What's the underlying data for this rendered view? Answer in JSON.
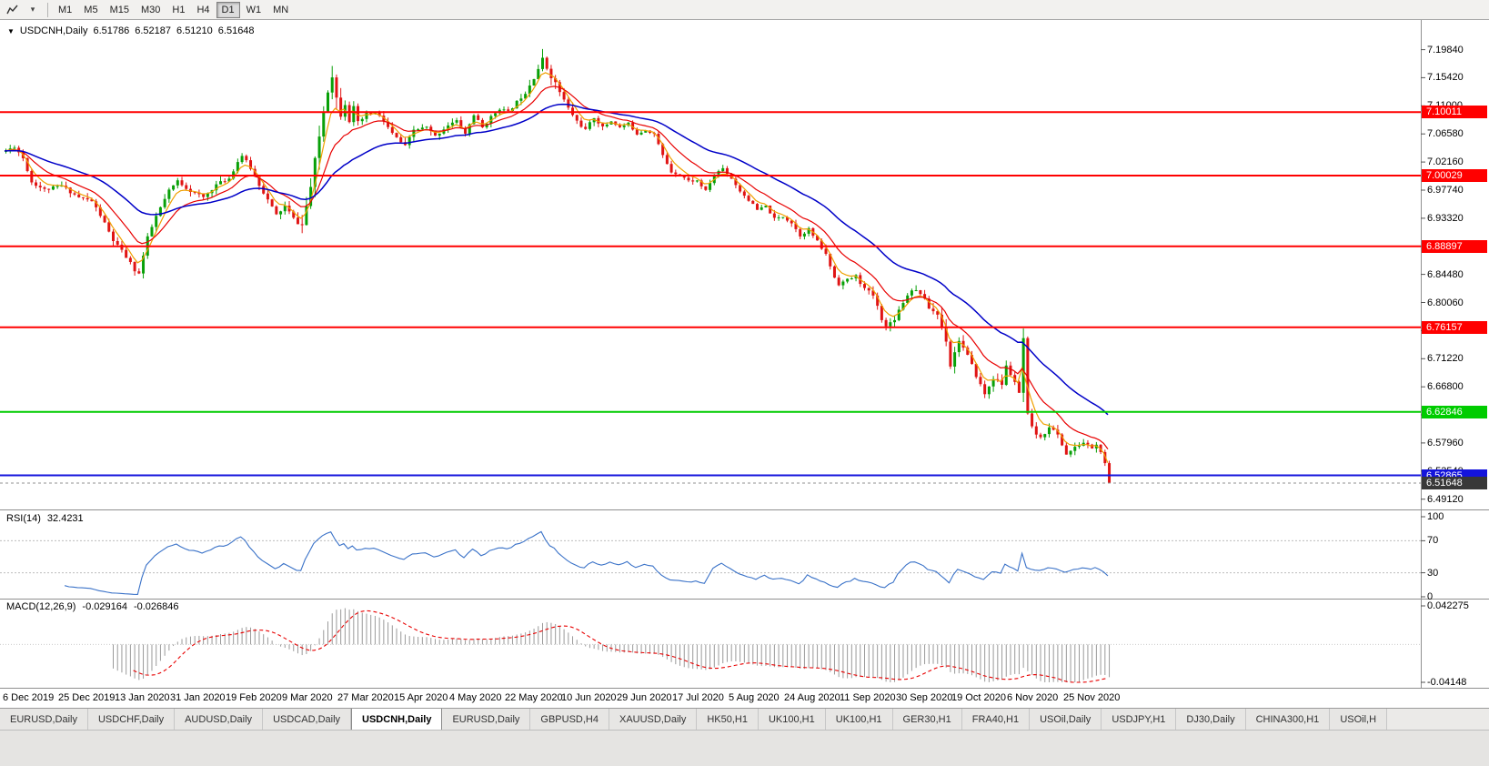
{
  "toolbar": {
    "chart_icon": "zigzag-chart-icon",
    "dropdown_icon": "chevron-down-icon",
    "timeframes": [
      "M1",
      "M5",
      "M15",
      "M30",
      "H1",
      "H4",
      "D1",
      "W1",
      "MN"
    ],
    "active_timeframe": "D1"
  },
  "chart": {
    "title": {
      "collapse_icon": "triangle-down-icon",
      "symbol": "USDCNH,Daily",
      "open": "6.51786",
      "high": "6.52187",
      "low": "6.51210",
      "close": "6.51648"
    }
  },
  "rsi": {
    "label": "RSI(14)",
    "value": "32.4231",
    "levels": [
      {
        "label": "100",
        "value": 100
      },
      {
        "label": "70",
        "value": 70
      },
      {
        "label": "30",
        "value": 30
      },
      {
        "label": "0",
        "value": 0
      }
    ]
  },
  "macd": {
    "label": "MACD(12,26,9)",
    "value1": "-0.029164",
    "value2": "-0.026846",
    "axis_top": "0.042275",
    "axis_bottom": "-0.04148"
  },
  "tabs": {
    "active_index": 4,
    "items": [
      "EURUSD,Daily",
      "USDCHF,Daily",
      "AUDUSD,Daily",
      "USDCAD,Daily",
      "USDCNH,Daily",
      "EURUSD,Daily",
      "GBPUSD,H4",
      "XAUUSD,Daily",
      "HK50,H1",
      "UK100,H1",
      "UK100,H1",
      "GER30,H1",
      "FRA40,H1",
      "USOil,Daily",
      "USDJPY,H1",
      "DJ30,Daily",
      "CHINA300,H1",
      "USOil,H"
    ],
    "overflow_truncated_last": true
  },
  "chart_data": {
    "type": "candlestick",
    "symbol": "USDCNH",
    "timeframe": "Daily",
    "ohlc_display": {
      "open": 6.51786,
      "high": 6.52187,
      "low": 6.5121,
      "close": 6.51648
    },
    "visible_price_range": [
      6.475,
      7.245
    ],
    "price_axis_labels": [
      "7.19840",
      "7.15420",
      "7.11000",
      "7.06580",
      "7.02160",
      "6.97740",
      "6.93320",
      "6.88900",
      "6.84480",
      "6.80060",
      "6.75640",
      "6.71220",
      "6.66800",
      "6.62380",
      "6.57960",
      "6.53540",
      "6.49120"
    ],
    "date_labels": [
      "6 Dec 2019",
      "25 Dec 2019",
      "13 Jan 2020",
      "31 Jan 2020",
      "19 Feb 2020",
      "9 Mar 2020",
      "27 Mar 2020",
      "15 Apr 2020",
      "4 May 2020",
      "22 May 2020",
      "10 Jun 2020",
      "29 Jun 2020",
      "17 Jul 2020",
      "5 Aug 2020",
      "24 Aug 2020",
      "11 Sep 2020",
      "30 Sep 2020",
      "19 Oct 2020",
      "6 Nov 2020",
      "25 Nov 2020"
    ],
    "candles_per_label": 13,
    "num_candles": 258,
    "seed": 11,
    "close_anchors": [
      [
        0,
        7.039
      ],
      [
        2,
        7.046
      ],
      [
        4,
        7.028
      ],
      [
        6,
        6.99
      ],
      [
        9,
        6.978
      ],
      [
        13,
        6.984
      ],
      [
        17,
        6.966
      ],
      [
        20,
        6.96
      ],
      [
        22,
        6.938
      ],
      [
        25,
        6.898
      ],
      [
        28,
        6.872
      ],
      [
        30,
        6.852
      ],
      [
        31,
        6.846
      ],
      [
        33,
        6.902
      ],
      [
        35,
        6.936
      ],
      [
        38,
        6.976
      ],
      [
        40,
        6.992
      ],
      [
        43,
        6.976
      ],
      [
        46,
        6.966
      ],
      [
        49,
        6.986
      ],
      [
        52,
        6.996
      ],
      [
        54,
        7.022
      ],
      [
        55,
        7.032
      ],
      [
        57,
        7.012
      ],
      [
        59,
        6.986
      ],
      [
        61,
        6.962
      ],
      [
        63,
        6.938
      ],
      [
        65,
        6.952
      ],
      [
        67,
        6.932
      ],
      [
        69,
        6.922
      ],
      [
        71,
        6.982
      ],
      [
        72,
        7.022
      ],
      [
        73,
        7.062
      ],
      [
        74,
        7.102
      ],
      [
        75,
        7.136
      ],
      [
        76,
        7.16
      ],
      [
        77,
        7.122
      ],
      [
        78,
        7.098
      ],
      [
        79,
        7.116
      ],
      [
        80,
        7.088
      ],
      [
        81,
        7.106
      ],
      [
        82,
        7.082
      ],
      [
        84,
        7.096
      ],
      [
        86,
        7.1
      ],
      [
        88,
        7.086
      ],
      [
        90,
        7.066
      ],
      [
        93,
        7.046
      ],
      [
        95,
        7.072
      ],
      [
        98,
        7.076
      ],
      [
        100,
        7.062
      ],
      [
        103,
        7.08
      ],
      [
        105,
        7.086
      ],
      [
        107,
        7.066
      ],
      [
        109,
        7.096
      ],
      [
        111,
        7.076
      ],
      [
        113,
        7.092
      ],
      [
        115,
        7.106
      ],
      [
        117,
        7.1
      ],
      [
        119,
        7.116
      ],
      [
        121,
        7.132
      ],
      [
        123,
        7.156
      ],
      [
        125,
        7.182
      ],
      [
        127,
        7.158
      ],
      [
        129,
        7.132
      ],
      [
        131,
        7.106
      ],
      [
        133,
        7.086
      ],
      [
        135,
        7.072
      ],
      [
        137,
        7.092
      ],
      [
        139,
        7.076
      ],
      [
        141,
        7.086
      ],
      [
        143,
        7.076
      ],
      [
        145,
        7.082
      ],
      [
        147,
        7.066
      ],
      [
        149,
        7.072
      ],
      [
        151,
        7.066
      ],
      [
        153,
        7.032
      ],
      [
        155,
        7.006
      ],
      [
        157,
        7.002
      ],
      [
        159,
        6.992
      ],
      [
        161,
        6.992
      ],
      [
        163,
        6.976
      ],
      [
        165,
        7.002
      ],
      [
        167,
        7.012
      ],
      [
        169,
        6.996
      ],
      [
        171,
        6.976
      ],
      [
        173,
        6.962
      ],
      [
        175,
        6.946
      ],
      [
        177,
        6.952
      ],
      [
        179,
        6.932
      ],
      [
        181,
        6.936
      ],
      [
        183,
        6.926
      ],
      [
        185,
        6.906
      ],
      [
        187,
        6.916
      ],
      [
        189,
        6.896
      ],
      [
        191,
        6.876
      ],
      [
        193,
        6.84
      ],
      [
        194,
        6.83
      ],
      [
        196,
        6.836
      ],
      [
        198,
        6.842
      ],
      [
        200,
        6.822
      ],
      [
        202,
        6.812
      ],
      [
        204,
        6.776
      ],
      [
        205,
        6.762
      ],
      [
        207,
        6.776
      ],
      [
        209,
        6.802
      ],
      [
        211,
        6.822
      ],
      [
        213,
        6.816
      ],
      [
        215,
        6.792
      ],
      [
        217,
        6.782
      ],
      [
        219,
        6.742
      ],
      [
        220,
        6.702
      ],
      [
        222,
        6.742
      ],
      [
        224,
        6.716
      ],
      [
        226,
        6.686
      ],
      [
        228,
        6.656
      ],
      [
        230,
        6.682
      ],
      [
        232,
        6.672
      ],
      [
        233,
        6.7
      ],
      [
        235,
        6.676
      ],
      [
        236,
        6.656
      ],
      [
        237,
        6.742
      ],
      [
        238,
        6.622
      ],
      [
        239,
        6.602
      ],
      [
        241,
        6.586
      ],
      [
        243,
        6.606
      ],
      [
        245,
        6.592
      ],
      [
        247,
        6.562
      ],
      [
        249,
        6.572
      ],
      [
        251,
        6.58
      ],
      [
        253,
        6.572
      ],
      [
        254,
        6.576
      ],
      [
        255,
        6.566
      ],
      [
        256,
        6.546
      ],
      [
        257,
        6.51648
      ]
    ],
    "vol_anchors": [
      [
        0,
        0.009
      ],
      [
        20,
        0.011
      ],
      [
        27,
        0.013
      ],
      [
        40,
        0.01
      ],
      [
        55,
        0.01
      ],
      [
        65,
        0.012
      ],
      [
        71,
        0.024
      ],
      [
        77,
        0.026
      ],
      [
        82,
        0.016
      ],
      [
        90,
        0.011
      ],
      [
        105,
        0.009
      ],
      [
        118,
        0.009
      ],
      [
        123,
        0.016
      ],
      [
        126,
        0.022
      ],
      [
        130,
        0.012
      ],
      [
        145,
        0.007
      ],
      [
        160,
        0.007
      ],
      [
        175,
        0.008
      ],
      [
        190,
        0.009
      ],
      [
        200,
        0.011
      ],
      [
        205,
        0.013
      ],
      [
        215,
        0.012
      ],
      [
        219,
        0.018
      ],
      [
        222,
        0.013
      ],
      [
        228,
        0.012
      ],
      [
        236,
        0.012
      ],
      [
        237,
        0.03
      ],
      [
        238,
        0.018
      ],
      [
        240,
        0.012
      ],
      [
        248,
        0.009
      ],
      [
        257,
        0.009
      ]
    ],
    "moving_averages": [
      {
        "name": "ma-fast",
        "period": 5,
        "color": "#F0A000"
      },
      {
        "name": "ma-mid",
        "period": 13,
        "color": "#E80000"
      },
      {
        "name": "ma-slow",
        "period": 34,
        "color": "#0000C8"
      }
    ],
    "hlines": [
      {
        "price": 7.10011,
        "label": "7.10011",
        "color": "#FF0000",
        "style": "solid"
      },
      {
        "price": 7.00029,
        "label": "7.00029",
        "color": "#FF0000",
        "style": "solid"
      },
      {
        "price": 6.88897,
        "label": "6.88897",
        "color": "#FF0000",
        "style": "solid"
      },
      {
        "price": 6.76157,
        "label": "6.76157",
        "color": "#FF0000",
        "style": "solid"
      },
      {
        "price": 6.62846,
        "label": "6.62846",
        "color": "#00CC00",
        "style": "solid"
      },
      {
        "price": 6.52865,
        "label": "6.52865",
        "color": "#1414DC",
        "style": "solid"
      }
    ],
    "current_price": {
      "price": 6.51648,
      "label": "6.51648",
      "badge_color": "#383838"
    },
    "colors": {
      "up": "#08A008",
      "down": "#E01414",
      "rsi": "#3A72C8",
      "macd_hist": "#9A9A9A",
      "macd_signal": "#E80000",
      "background": "#FFFFFF",
      "axis_text": "#000000"
    },
    "rsi_settings": {
      "period": 14,
      "dashed_levels": [
        70,
        30
      ]
    },
    "macd_settings": {
      "fast": 12,
      "slow": 26,
      "signal": 9
    }
  }
}
